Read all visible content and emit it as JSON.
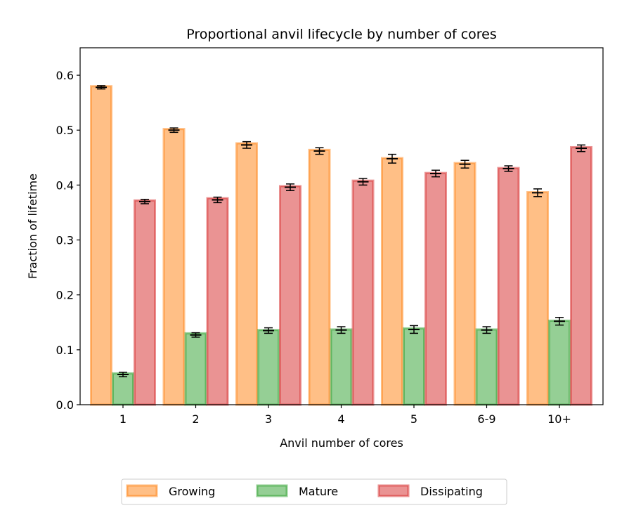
{
  "chart_data": {
    "type": "bar",
    "title": "Proportional anvil lifecycle by number of cores",
    "xlabel": "Anvil number of cores",
    "ylabel": "Fraction of lifetime",
    "categories": [
      "1",
      "2",
      "3",
      "4",
      "5",
      "6-9",
      "10+"
    ],
    "ylim": [
      0,
      0.65
    ],
    "yticks": [
      "0.0",
      "0.1",
      "0.2",
      "0.3",
      "0.4",
      "0.5",
      "0.6"
    ],
    "grid": false,
    "legend_position": "bottom-center",
    "series": [
      {
        "name": "Growing",
        "color": "#ff7f0e",
        "values": [
          0.58,
          0.502,
          0.476,
          0.464,
          0.449,
          0.44,
          0.387
        ],
        "error_center": [
          0.578,
          0.5,
          0.473,
          0.462,
          0.448,
          0.438,
          0.386
        ],
        "error": [
          0.003,
          0.004,
          0.006,
          0.006,
          0.008,
          0.007,
          0.007
        ]
      },
      {
        "name": "Mature",
        "color": "#2ca02c",
        "values": [
          0.057,
          0.13,
          0.136,
          0.137,
          0.139,
          0.137,
          0.153
        ],
        "error_center": [
          0.055,
          0.127,
          0.135,
          0.136,
          0.137,
          0.136,
          0.152
        ],
        "error": [
          0.004,
          0.004,
          0.005,
          0.006,
          0.007,
          0.006,
          0.007
        ]
      },
      {
        "name": "Dissipating",
        "color": "#d62728",
        "values": [
          0.372,
          0.376,
          0.398,
          0.408,
          0.422,
          0.431,
          0.469
        ],
        "error_center": [
          0.37,
          0.373,
          0.396,
          0.406,
          0.421,
          0.43,
          0.467
        ],
        "error": [
          0.004,
          0.005,
          0.006,
          0.006,
          0.006,
          0.005,
          0.006
        ]
      }
    ]
  }
}
